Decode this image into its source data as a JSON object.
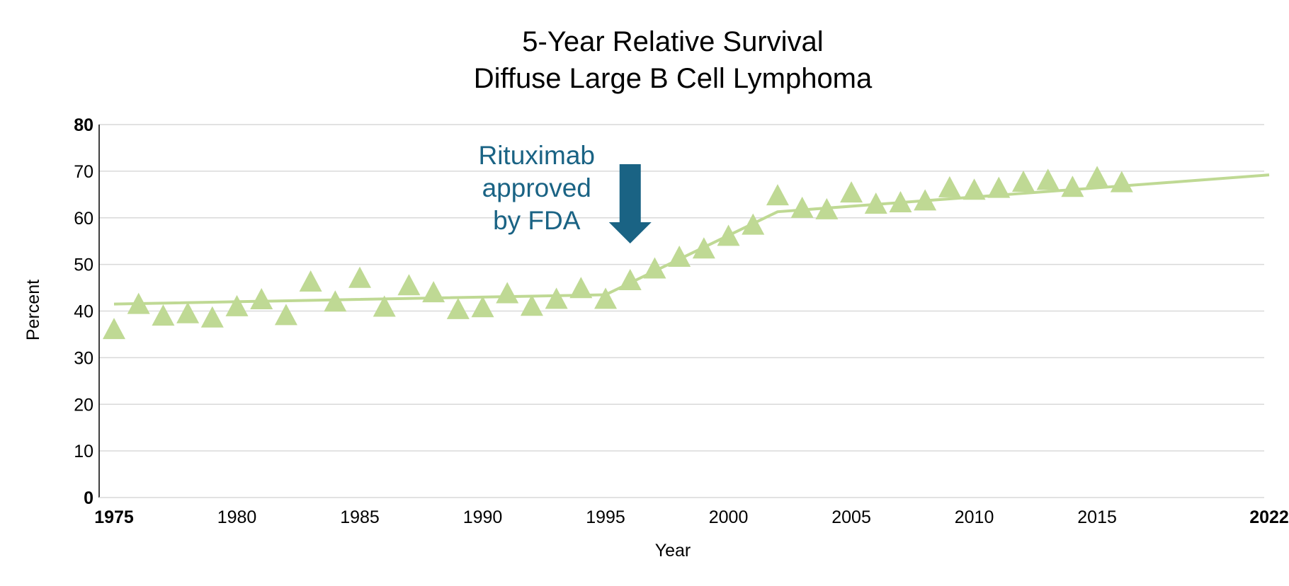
{
  "chart_data": {
    "type": "scatter",
    "title_lines": [
      "5-Year Relative Survival",
      "Diffuse Large B Cell Lymphoma"
    ],
    "xlabel": "Year",
    "ylabel": "Percent",
    "xlim": [
      1975,
      2022
    ],
    "ylim": [
      0,
      80
    ],
    "grid": true,
    "x_ticks": [
      {
        "value": 1975,
        "label": "1975",
        "bold": true
      },
      {
        "value": 1980,
        "label": "1980",
        "bold": false
      },
      {
        "value": 1985,
        "label": "1985",
        "bold": false
      },
      {
        "value": 1990,
        "label": "1990",
        "bold": false
      },
      {
        "value": 1995,
        "label": "1995",
        "bold": false
      },
      {
        "value": 2000,
        "label": "2000",
        "bold": false
      },
      {
        "value": 2005,
        "label": "2005",
        "bold": false
      },
      {
        "value": 2010,
        "label": "2010",
        "bold": false
      },
      {
        "value": 2015,
        "label": "2015",
        "bold": false
      },
      {
        "value": 2022,
        "label": "2022",
        "bold": true
      }
    ],
    "y_ticks": [
      {
        "value": 0,
        "label": "0",
        "bold": true
      },
      {
        "value": 10,
        "label": "10",
        "bold": false
      },
      {
        "value": 20,
        "label": "20",
        "bold": false
      },
      {
        "value": 30,
        "label": "30",
        "bold": false
      },
      {
        "value": 40,
        "label": "40",
        "bold": false
      },
      {
        "value": 50,
        "label": "50",
        "bold": false
      },
      {
        "value": 60,
        "label": "60",
        "bold": false
      },
      {
        "value": 70,
        "label": "70",
        "bold": false
      },
      {
        "value": 80,
        "label": "80",
        "bold": true
      }
    ],
    "series": [
      {
        "type": "scatter",
        "marker": "triangle",
        "color": "#bfd994",
        "x": [
          1975,
          1976,
          1977,
          1978,
          1979,
          1980,
          1981,
          1982,
          1983,
          1984,
          1985,
          1986,
          1987,
          1988,
          1989,
          1990,
          1991,
          1992,
          1993,
          1994,
          1995,
          1996,
          1997,
          1998,
          1999,
          2000,
          2001,
          2002,
          2003,
          2004,
          2005,
          2006,
          2007,
          2008,
          2009,
          2010,
          2011,
          2012,
          2013,
          2014,
          2015,
          2016
        ],
        "y": [
          35.8,
          41.2,
          38.7,
          39.2,
          38.3,
          40.7,
          42.2,
          38.8,
          46.0,
          41.7,
          46.8,
          40.6,
          45.2,
          43.7,
          40.1,
          40.5,
          43.5,
          40.8,
          42.3,
          44.6,
          42.3,
          46.3,
          48.8,
          51.3,
          53.1,
          55.8,
          58.2,
          64.5,
          61.8,
          61.5,
          65.1,
          62.7,
          63.0,
          63.4,
          66.2,
          65.7,
          66.1,
          67.4,
          67.8,
          66.3,
          68.4,
          67.3
        ]
      },
      {
        "type": "line",
        "color": "#bfd994",
        "x": [
          1975,
          1995,
          2002,
          2022
        ],
        "y": [
          41.5,
          43.5,
          61.3,
          69.2
        ]
      }
    ],
    "annotations": [
      {
        "lines": [
          "Rituximab",
          "approved",
          "by FDA"
        ],
        "color": "#1a6384",
        "arrow_x": 1996,
        "arrow_top_y": 71.5,
        "arrow_bottom_y": 54.5
      }
    ]
  }
}
